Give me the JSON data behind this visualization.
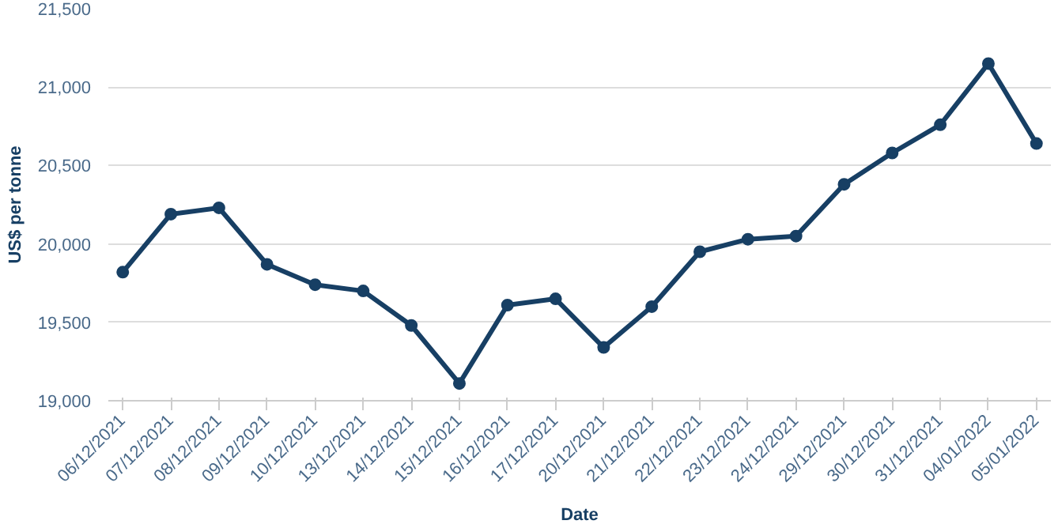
{
  "chart_data": {
    "type": "line",
    "xlabel": "Date",
    "ylabel": "US$ per tonne",
    "categories": [
      "06/12/2021",
      "07/12/2021",
      "08/12/2021",
      "09/12/2021",
      "10/12/2021",
      "13/12/2021",
      "14/12/2021",
      "15/12/2021",
      "16/12/2021",
      "17/12/2021",
      "20/12/2021",
      "21/12/2021",
      "22/12/2021",
      "23/12/2021",
      "24/12/2021",
      "29/12/2021",
      "30/12/2021",
      "31/12/2021",
      "04/01/2022",
      "05/01/2022"
    ],
    "series": [
      {
        "color": "#173f64",
        "values": [
          19820,
          20190,
          20230,
          19870,
          19740,
          19700,
          19480,
          19110,
          19610,
          19650,
          19340,
          19600,
          19950,
          20030,
          20050,
          20380,
          20580,
          20760,
          21150,
          20640
        ]
      }
    ],
    "ylim": [
      19000,
      21500
    ],
    "yticks": [
      {
        "value": 19000,
        "label": "19,000"
      },
      {
        "value": 19500,
        "label": "19,500"
      },
      {
        "value": 20000,
        "label": "20,000"
      },
      {
        "value": 20500,
        "label": "20,500"
      },
      {
        "value": 21000,
        "label": "21,000"
      },
      {
        "value": 21500,
        "label": "21,500"
      }
    ],
    "grid": "y",
    "marker": "circle",
    "line_style": "solid"
  }
}
